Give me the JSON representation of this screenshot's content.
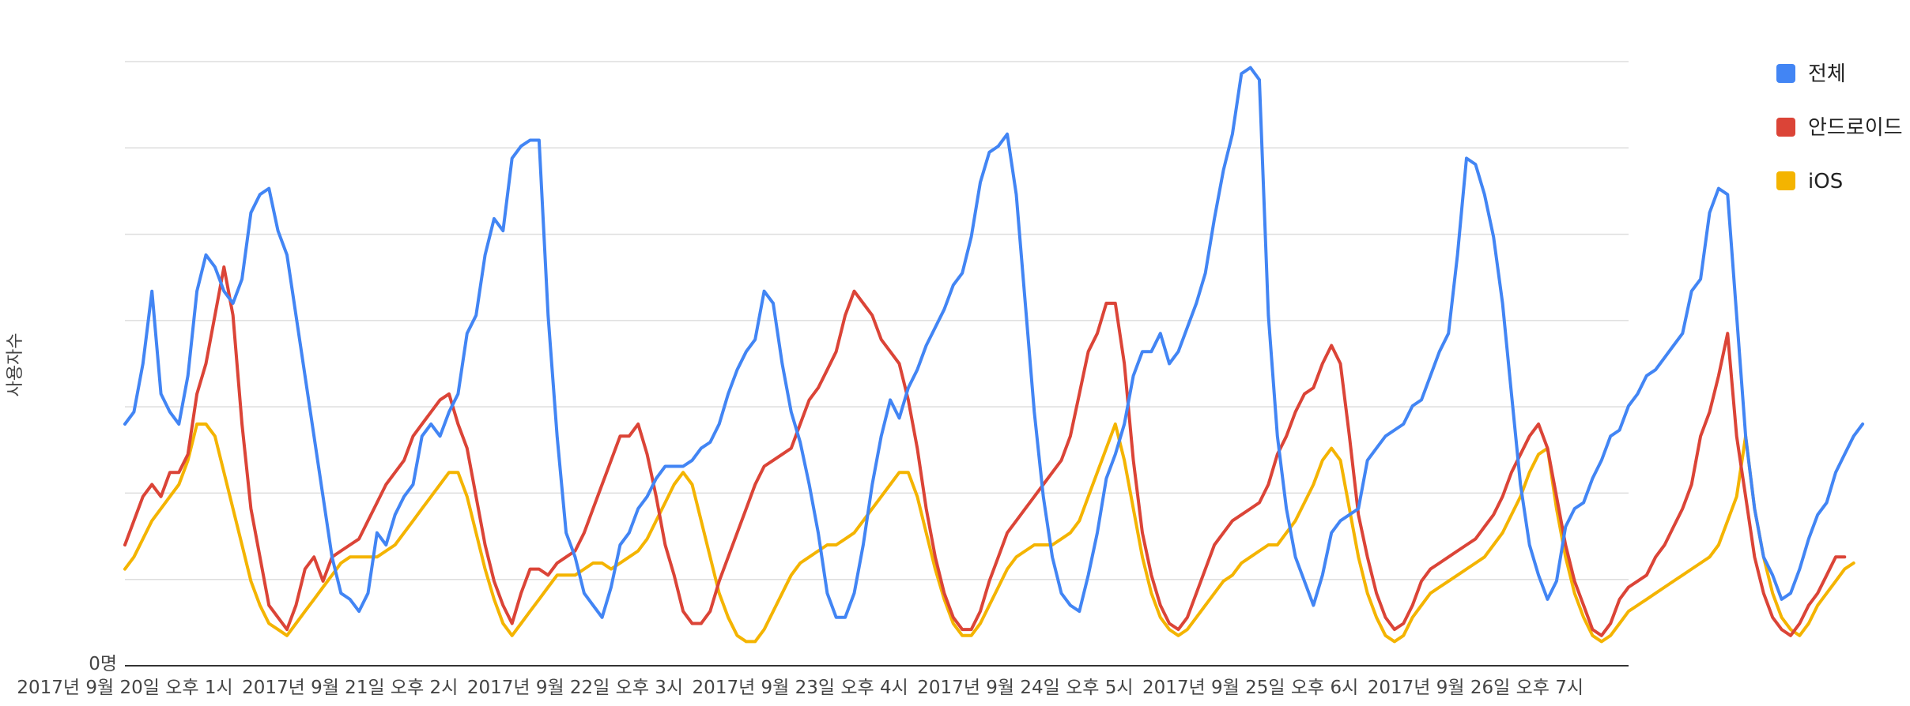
{
  "chart_data": {
    "type": "line",
    "ylabel": "사용자수",
    "xlabel": "",
    "y_tick_labels": [
      "0명"
    ],
    "ylim": [
      0,
      100
    ],
    "grid": true,
    "legend_position": "right",
    "x_tick_labels": [
      "2017년 9월 20일 오후 1시",
      "2017년 9월 21일 오후 2시",
      "2017년 9월 22일 오후 3시",
      "2017년 9월 23일 오후 4시",
      "2017년 9월 24일 오후 5시",
      "2017년 9월 25일 오후 6시",
      "2017년 9월 26일 오후 7시"
    ],
    "x_tick_hours": [
      0,
      25,
      50,
      75,
      100,
      125,
      150
    ],
    "hours": 168,
    "series": [
      {
        "name": "전체",
        "color": "#4285f4",
        "values": [
          40,
          42,
          50,
          62,
          45,
          42,
          40,
          48,
          62,
          68,
          66,
          62,
          60,
          64,
          75,
          78,
          79,
          72,
          68,
          58,
          48,
          38,
          28,
          18,
          12,
          11,
          9,
          12,
          22,
          20,
          25,
          28,
          30,
          38,
          40,
          38,
          42,
          45,
          55,
          58,
          68,
          74,
          72,
          84,
          86,
          87,
          87,
          58,
          38,
          22,
          18,
          12,
          10,
          8,
          13,
          20,
          22,
          26,
          28,
          31,
          33,
          33,
          33,
          34,
          36,
          37,
          40,
          45,
          49,
          52,
          54,
          62,
          60,
          50,
          42,
          37,
          30,
          22,
          12,
          8,
          8,
          12,
          20,
          30,
          38,
          44,
          41,
          46,
          49,
          53,
          56,
          59,
          63,
          65,
          71,
          80,
          85,
          86,
          88,
          78,
          60,
          42,
          28,
          18,
          12,
          10,
          9,
          15,
          22,
          31,
          35,
          40,
          48,
          52,
          52,
          55,
          50,
          52,
          56,
          60,
          65,
          74,
          82,
          88,
          98,
          99,
          97,
          58,
          38,
          26,
          18,
          14,
          10,
          15,
          22,
          24,
          25,
          26,
          34,
          36,
          38,
          39,
          40,
          43,
          44,
          48,
          52,
          55,
          68,
          84,
          83,
          78,
          71,
          60,
          45,
          30,
          20,
          15,
          11,
          14,
          23,
          26,
          27,
          31,
          34,
          38,
          39,
          43,
          45,
          48,
          49,
          51,
          53,
          55,
          62,
          64,
          75,
          79,
          78,
          58,
          38,
          26,
          18,
          15,
          11,
          12,
          16,
          21,
          25,
          27,
          32,
          35,
          38,
          40
        ]
      },
      {
        "name": "안드로이드",
        "color": "#db4437",
        "values": [
          20,
          24,
          28,
          30,
          28,
          32,
          32,
          35,
          45,
          50,
          58,
          66,
          58,
          40,
          26,
          18,
          10,
          8,
          6,
          10,
          16,
          18,
          14,
          18,
          19,
          20,
          21,
          24,
          27,
          30,
          32,
          34,
          38,
          40,
          42,
          44,
          45,
          40,
          36,
          28,
          20,
          14,
          10,
          7,
          12,
          16,
          16,
          15,
          17,
          18,
          19,
          22,
          26,
          30,
          34,
          38,
          38,
          40,
          35,
          28,
          20,
          15,
          9,
          7,
          7,
          9,
          14,
          18,
          22,
          26,
          30,
          33,
          34,
          35,
          36,
          40,
          44,
          46,
          49,
          52,
          58,
          62,
          60,
          58,
          54,
          52,
          50,
          44,
          36,
          26,
          18,
          12,
          8,
          6,
          6,
          9,
          14,
          18,
          22,
          24,
          26,
          28,
          30,
          32,
          34,
          38,
          45,
          52,
          55,
          60,
          60,
          50,
          34,
          22,
          15,
          10,
          7,
          6,
          8,
          12,
          16,
          20,
          22,
          24,
          25,
          26,
          27,
          30,
          35,
          38,
          42,
          45,
          46,
          50,
          53,
          50,
          38,
          25,
          18,
          12,
          8,
          6,
          7,
          10,
          14,
          16,
          17,
          18,
          19,
          20,
          21,
          23,
          25,
          28,
          32,
          35,
          38,
          40,
          36,
          28,
          20,
          14,
          10,
          6,
          5,
          7,
          11,
          13,
          14,
          15,
          18,
          20,
          23,
          26,
          30,
          38,
          42,
          48,
          55,
          38,
          28,
          18,
          12,
          8,
          6,
          5,
          7,
          10,
          12,
          15,
          18,
          18
        ]
      },
      {
        "name": "iOS",
        "color": "#f4b400",
        "values": [
          16,
          18,
          21,
          24,
          26,
          28,
          30,
          34,
          40,
          40,
          38,
          32,
          26,
          20,
          14,
          10,
          7,
          6,
          5,
          7,
          9,
          11,
          13,
          15,
          17,
          18,
          18,
          18,
          18,
          19,
          20,
          22,
          24,
          26,
          28,
          30,
          32,
          32,
          28,
          22,
          16,
          11,
          7,
          5,
          7,
          9,
          11,
          13,
          15,
          15,
          15,
          16,
          17,
          17,
          16,
          17,
          18,
          19,
          21,
          24,
          27,
          30,
          32,
          30,
          24,
          18,
          12,
          8,
          5,
          4,
          4,
          6,
          9,
          12,
          15,
          17,
          18,
          19,
          20,
          20,
          21,
          22,
          24,
          26,
          28,
          30,
          32,
          32,
          28,
          22,
          16,
          11,
          7,
          5,
          5,
          7,
          10,
          13,
          16,
          18,
          19,
          20,
          20,
          20,
          21,
          22,
          24,
          28,
          32,
          36,
          40,
          34,
          26,
          18,
          12,
          8,
          6,
          5,
          6,
          8,
          10,
          12,
          14,
          15,
          17,
          18,
          19,
          20,
          20,
          22,
          24,
          27,
          30,
          34,
          36,
          34,
          26,
          18,
          12,
          8,
          5,
          4,
          5,
          8,
          10,
          12,
          13,
          14,
          15,
          16,
          17,
          18,
          20,
          22,
          25,
          28,
          32,
          35,
          36,
          26,
          18,
          12,
          8,
          5,
          4,
          5,
          7,
          9,
          10,
          11,
          12,
          13,
          14,
          15,
          16,
          17,
          18,
          20,
          24,
          28,
          38,
          26,
          18,
          12,
          8,
          6,
          5,
          7,
          10,
          12,
          14,
          16,
          17
        ]
      }
    ]
  }
}
